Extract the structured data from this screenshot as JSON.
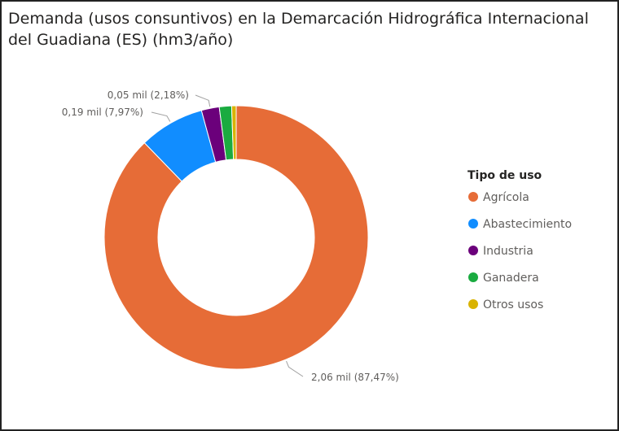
{
  "chart_data": {
    "type": "pie",
    "title": "Demanda (usos consuntivos) en la Demarcación Hidrográfica Internacional del Guadiana (ES) (hm3/año)",
    "legend_title": "Tipo de uso",
    "legend_position": "right",
    "categories": [
      "Agrícola",
      "Abastecimiento",
      "Industria",
      "Ganadera",
      "Otros usos"
    ],
    "values": [
      2.06,
      0.19,
      0.05,
      0.035,
      0.013
    ],
    "percents": [
      87.47,
      7.97,
      2.18,
      1.5,
      0.55
    ],
    "colors": [
      "#e66c37",
      "#118dff",
      "#6b007b",
      "#1aab40",
      "#d9b300"
    ],
    "data_labels": [
      "2,06 mil (87,47%)",
      "0,19 mil (7,97%)",
      "0,05 mil (2,18%)",
      "",
      ""
    ]
  }
}
